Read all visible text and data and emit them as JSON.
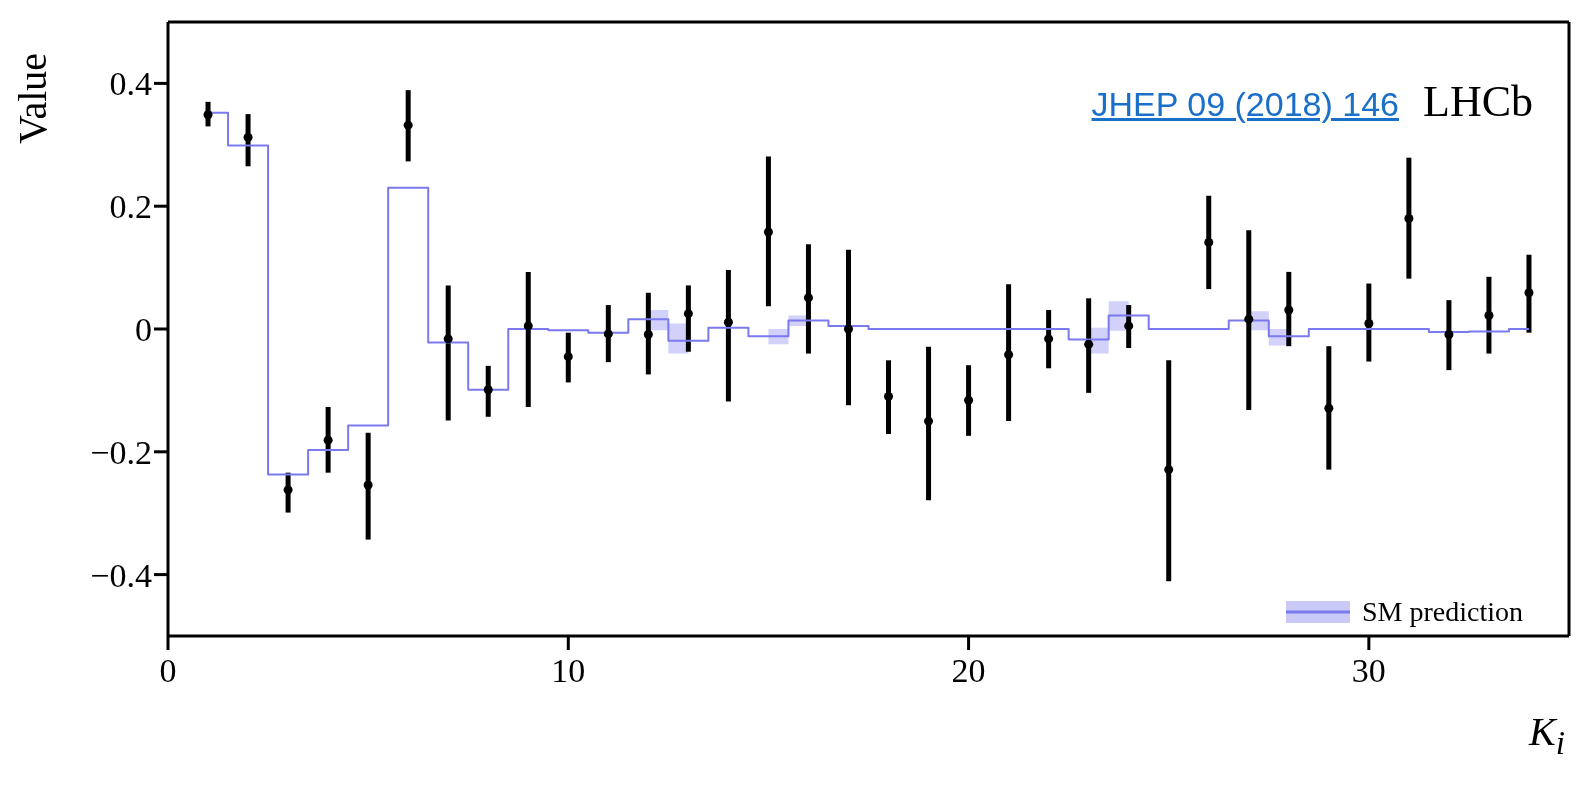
{
  "chart_data": {
    "type": "scatter",
    "xlabel": "K$_{i}$",
    "ylabel": "Value",
    "annotations": [
      "JHEP 09 (2018) 146",
      "LHCb"
    ],
    "xlim": [
      0,
      35
    ],
    "xticks": [
      0,
      10,
      20,
      30
    ],
    "ylim": [
      -0.5,
      0.5
    ],
    "yticks": [
      {
        "value": -0.4,
        "label": "−0.4"
      },
      {
        "value": -0.2,
        "label": "−0.2"
      },
      0,
      0.2,
      0.4
    ],
    "legend": "bottom right",
    "series": [
      {
        "marker": "circle",
        "color": "#000000",
        "x": [
          1,
          2,
          3,
          4,
          5,
          6,
          7,
          8,
          9,
          10,
          11,
          12,
          13,
          14,
          15,
          16,
          17,
          18,
          19,
          20,
          21,
          22,
          23,
          24,
          25,
          26,
          27,
          28,
          29,
          30,
          31,
          32,
          33,
          34
        ],
        "values": [
          0.349,
          0.312,
          -0.262,
          -0.181,
          -0.254,
          0.332,
          -0.016,
          -0.099,
          0.005,
          -0.045,
          -0.008,
          -0.009,
          0.025,
          0.011,
          0.158,
          0.051,
          0,
          -0.11,
          -0.15,
          -0.116,
          -0.042,
          -0.016,
          -0.025,
          0.005,
          -0.229,
          0.141,
          0.016,
          0.031,
          -0.129,
          0.009,
          0.18,
          -0.009,
          0.022,
          0.059
        ],
        "errors": [
          [
            0.33,
            0.37
          ],
          [
            0.265,
            0.35
          ],
          [
            -0.299,
            -0.234
          ],
          [
            -0.234,
            -0.127
          ],
          [
            -0.343,
            -0.169
          ],
          [
            0.273,
            0.389
          ],
          [
            -0.149,
            0.071
          ],
          [
            -0.143,
            -0.06
          ],
          [
            -0.127,
            0.093
          ],
          [
            -0.087,
            -0.006
          ],
          [
            -0.054,
            0.039
          ],
          [
            -0.074,
            0.059
          ],
          [
            -0.037,
            0.071
          ],
          [
            -0.118,
            0.096
          ],
          [
            0.037,
            0.281
          ],
          [
            -0.04,
            0.138
          ],
          [
            -0.124,
            0.129
          ],
          [
            -0.171,
            -0.051
          ],
          [
            -0.279,
            -0.029
          ],
          [
            -0.174,
            -0.059
          ],
          [
            -0.15,
            0.073
          ],
          [
            -0.064,
            0.031
          ],
          [
            -0.104,
            0.05
          ],
          [
            -0.031,
            0.039
          ],
          [
            -0.411,
            -0.051
          ],
          [
            0.065,
            0.217
          ],
          [
            -0.132,
            0.161
          ],
          [
            -0.028,
            0.093
          ],
          [
            -0.229,
            -0.028
          ],
          [
            -0.053,
            0.074
          ],
          [
            0.082,
            0.279
          ],
          [
            -0.067,
            0.047
          ],
          [
            -0.04,
            0.085
          ],
          [
            -0.006,
            0.121
          ]
        ]
      },
      {
        "type": "step",
        "name": "SM prediction",
        "color": "#7a7aee",
        "x": [
          1,
          2,
          3,
          4,
          5,
          6,
          7,
          8,
          9,
          10,
          11,
          12,
          13,
          14,
          15,
          16,
          17,
          18,
          19,
          20,
          21,
          22,
          23,
          24,
          25,
          26,
          27,
          28,
          29,
          30,
          31,
          32,
          33,
          34
        ],
        "values": [
          0.352,
          0.299,
          -0.237,
          -0.197,
          -0.157,
          0.23,
          -0.022,
          -0.099,
          0,
          -0.002,
          -0.006,
          0.016,
          -0.019,
          0.002,
          -0.012,
          0.014,
          0.005,
          0,
          0,
          0,
          0,
          0,
          -0.017,
          0.022,
          0,
          0,
          0.014,
          -0.012,
          0,
          0,
          0,
          -0.005,
          -0.004,
          0
        ],
        "lower": [
          null,
          null,
          null,
          null,
          null,
          null,
          null,
          null,
          null,
          null,
          null,
          -0.002,
          -0.04,
          null,
          -0.025,
          0.005,
          null,
          null,
          null,
          null,
          null,
          null,
          -0.04,
          -0.003,
          null,
          null,
          -0.002,
          -0.027,
          null,
          null,
          null,
          null,
          null,
          null
        ],
        "upper": [
          null,
          null,
          null,
          null,
          null,
          null,
          null,
          null,
          null,
          null,
          null,
          0.031,
          0.009,
          null,
          0.0,
          0.022,
          null,
          null,
          null,
          null,
          null,
          null,
          0.002,
          0.045,
          null,
          null,
          0.029,
          0.0,
          null,
          null,
          null,
          null,
          null,
          null
        ]
      }
    ]
  }
}
